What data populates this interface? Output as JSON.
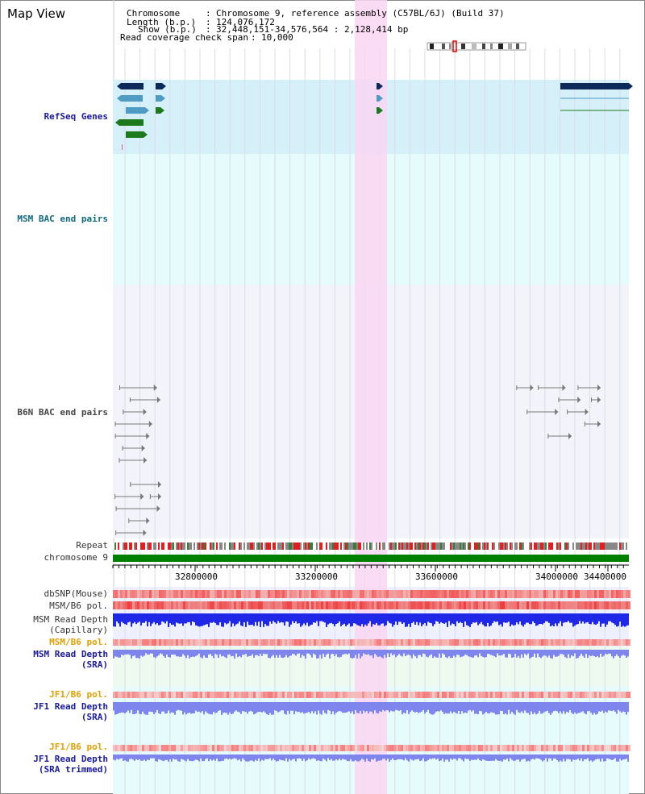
{
  "title": "Map View",
  "info": {
    "chromosome_key": "Chromosome",
    "chromosome_val": "Chromosome 9, reference assembly (C57BL/6J) (Build 37)",
    "length_key": "Length (b.p.)",
    "length_val": "124,076,172",
    "show_key": "Show (b.p.)",
    "show_val": "32,448,151-34,576,564 : 2,128,414 bp",
    "span_key": "Read coverage check span",
    "span_val": "10,000"
  },
  "tracks": {
    "refseq": "RefSeq Genes",
    "msm_bac": "MSM BAC end pairs",
    "b6n_bac": "B6N BAC end pairs",
    "repeat": "Repeat",
    "chromosome": "chromosome 9",
    "dbsnp": "dbSNP(Mouse)",
    "msm_b6_pol_1": "MSM/B6 pol.",
    "msm_depth_cap_1": "MSM Read Depth",
    "msm_depth_cap_2": "(Capillary)",
    "msm_b6_pol_2": "MSM/B6 pol.",
    "msm_depth_sra_1": "MSM Read Depth",
    "msm_depth_sra_2": "(SRA)",
    "jf1_pol_1": "JF1/B6 pol.",
    "jf1_depth_sra_1": "JF1 Read Depth",
    "jf1_depth_sra_2": "(SRA)",
    "jf1_pol_2": "JF1/B6 pol.",
    "jf1_depth_trim_1": "JF1 Read Depth",
    "jf1_depth_trim_2": "(SRA trimmed)"
  },
  "axis_ticks": [
    "32800000",
    "33200000",
    "33600000",
    "34000000",
    "34400000"
  ],
  "colors": {
    "refseq_bg": "#d6f0fa",
    "msm_bg": "#e6fbfb",
    "b6n_bg": "#f2f4fa",
    "highlight": "#f9d6f2",
    "chrom_bar": "#008000",
    "teal": "#1c6f8a",
    "navy": "#0b2a5a",
    "gene_blue": "#4f9bc4",
    "gene_green": "#1c7a1c",
    "depth_blue": "#1e28e6",
    "depth_light": "#7e86ee",
    "snp_red": "#f25454"
  }
}
